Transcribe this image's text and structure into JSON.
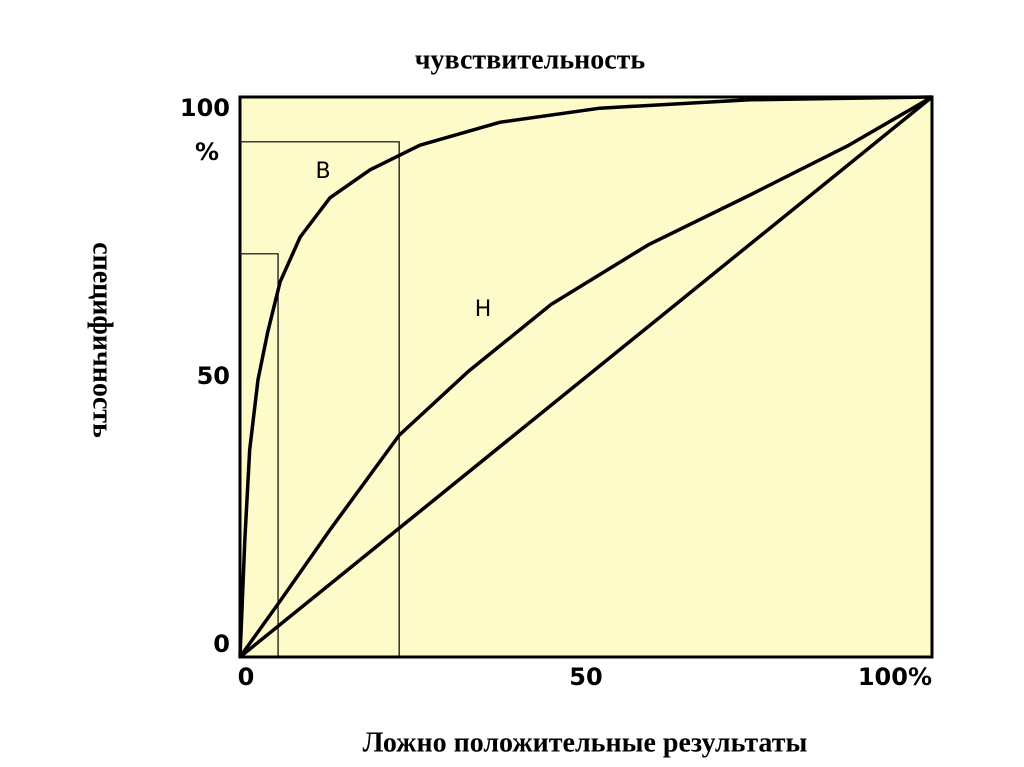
{
  "chart_data": {
    "type": "line",
    "title": "чувствительность",
    "y_label": "специфичность",
    "x_label": "Ложно положительные результаты",
    "y_unit": "%",
    "background": "#fdfbc9",
    "xlim": [
      0,
      100
    ],
    "ylim": [
      0,
      100
    ],
    "xticks": [
      0,
      50,
      {
        "value": 100,
        "label": "100%"
      }
    ],
    "yticks": [
      0,
      50,
      100
    ],
    "series": [
      {
        "name": "B",
        "color": "#000000",
        "x": [
          0,
          0.7,
          1.4,
          2.6,
          4,
          5.8,
          8.7,
          13,
          18.8,
          26,
          37.6,
          52,
          73.7,
          100
        ],
        "values": [
          0,
          21,
          37,
          49.5,
          58,
          67,
          75,
          82,
          87,
          91.4,
          95.5,
          98,
          99.5,
          100
        ]
      },
      {
        "name": "H",
        "color": "#000000",
        "x": [
          0,
          5.8,
          13,
          23,
          33,
          45,
          59,
          73.7,
          88,
          100
        ],
        "values": [
          0,
          10,
          22.7,
          39.6,
          51,
          63,
          73.6,
          82.5,
          91.4,
          100
        ]
      },
      {
        "color": "#000000",
        "x": [
          0,
          100
        ],
        "values": [
          0,
          100
        ]
      }
    ],
    "reference_lines": [
      {
        "x": 23,
        "y": 92
      },
      {
        "x": 5.5,
        "y": 72
      }
    ]
  }
}
